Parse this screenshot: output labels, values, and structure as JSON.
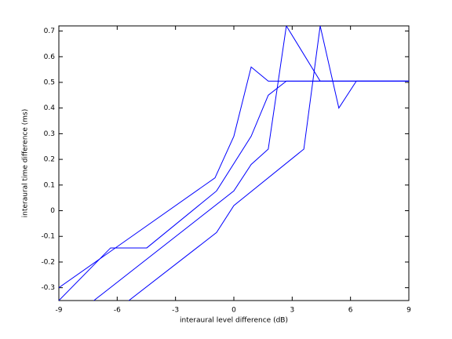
{
  "chart_data": {
    "type": "line",
    "xlabel": "interaural level difference (dB)",
    "ylabel": "interaural time difference (ms)",
    "xlim": [
      -9,
      9
    ],
    "ylim": [
      -0.35,
      0.72
    ],
    "xticks": [
      -9,
      -6,
      -3,
      0,
      3,
      6,
      9
    ],
    "yticks": [
      -0.3,
      -0.2,
      -0.1,
      0,
      0.1,
      0.2,
      0.3,
      0.4,
      0.5,
      0.6,
      0.7
    ],
    "series": [
      {
        "color": "#0000ff",
        "x": [
          -9,
          -0.97,
          0,
          0.89,
          1.77,
          9
        ],
        "values": [
          -0.3,
          0.128,
          0.29,
          0.56,
          0.505,
          0.505
        ]
      },
      {
        "color": "#0000ff",
        "x": [
          -9,
          -6.34,
          -4.48,
          -0.89,
          0.89,
          1.77,
          2.7,
          9
        ],
        "values": [
          -0.35,
          -0.145,
          -0.145,
          0.077,
          0.29,
          0.45,
          0.505,
          0.505
        ]
      },
      {
        "color": "#0000ff",
        "x": [
          -7.2,
          0,
          0.89,
          1.77,
          2.7,
          4.44,
          9
        ],
        "values": [
          -0.35,
          0.077,
          0.18,
          0.24,
          0.72,
          0.505,
          0.505
        ]
      },
      {
        "color": "#0000ff",
        "x": [
          -5.4,
          -0.89,
          0,
          3.6,
          4.44,
          5.4,
          6.3,
          9
        ],
        "values": [
          -0.35,
          -0.085,
          0.02,
          0.24,
          0.72,
          0.4,
          0.505,
          0.505
        ]
      }
    ]
  }
}
